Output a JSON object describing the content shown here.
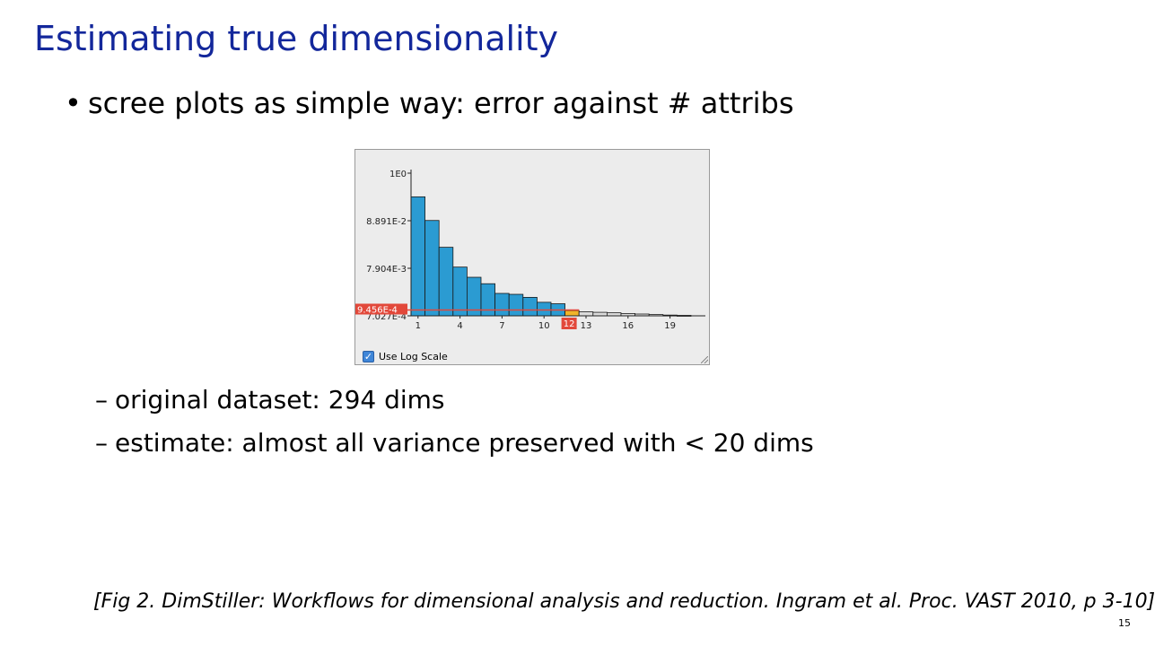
{
  "slide": {
    "title": "Estimating true dimensionality",
    "bullet_marker": "•",
    "bullet": "scree plots as simple way: error against # attribs",
    "sub_marker": "–",
    "sub_items": [
      "original dataset: 294 dims",
      "estimate: almost all variance preserved with < 20 dims"
    ],
    "citation": "[Fig 2. DimStiller: Workflows for dimensional analysis and reduction. Ingram et al. Proc. VAST 2010, p 3-10]",
    "page_number": "15"
  },
  "figure": {
    "checkbox_label": "Use Log Scale",
    "checkbox_checked": true,
    "checkmark": "✓",
    "threshold_label": "9.456E-4",
    "selected_label": "12",
    "colors": {
      "selected_bar": "#2b9bd2",
      "unselected_bar": "#dcdcdc",
      "cutoff_bar": "#f0b429",
      "threshold": "#e2483a"
    }
  },
  "chart_data": {
    "type": "bar",
    "y_scale": "log",
    "y_ticks": [
      "1E0",
      "8.891E-2",
      "7.904E-3",
      "7.027E-4"
    ],
    "y_tick_values": [
      1,
      0.08891,
      0.007904,
      0.0007027
    ],
    "x_ticks": [
      "1",
      "4",
      "7",
      "10",
      "13",
      "16",
      "19"
    ],
    "categories": [
      1,
      2,
      3,
      4,
      5,
      6,
      7,
      8,
      9,
      10,
      11,
      12,
      13,
      14,
      15,
      16,
      17,
      18,
      19,
      20
    ],
    "values": [
      0.3,
      0.09,
      0.023,
      0.0084,
      0.005,
      0.0036,
      0.0022,
      0.0021,
      0.0018,
      0.0014,
      0.0013,
      0.00092,
      0.00086,
      0.00084,
      0.00082,
      0.00079,
      0.00077,
      0.00075,
      0.00073,
      0.00072
    ],
    "selected_count": 11,
    "cutoff_index": 12,
    "threshold": 0.0009456,
    "title": "",
    "xlabel": "",
    "ylabel": ""
  }
}
